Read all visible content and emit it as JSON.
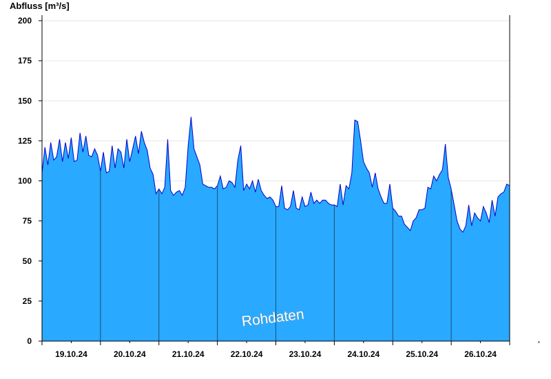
{
  "chart_data": {
    "type": "area",
    "ylabel": "Abfluss [m³/s]",
    "watermark": "Rohdaten",
    "ylim": [
      0,
      200
    ],
    "yticks": [
      0,
      25,
      50,
      75,
      100,
      125,
      150,
      175,
      200
    ],
    "x_day_labels": [
      "19.10.24",
      "20.10.24",
      "21.10.24",
      "22.10.24",
      "23.10.24",
      "24.10.24",
      "25.10.24",
      "26.10.24"
    ],
    "grid": "horizontal",
    "colors": {
      "fill": "#29a9ff",
      "line": "#0000cc",
      "grid": "#e6e6e6",
      "axis": "#000000",
      "day_line": "#1a4f7a"
    },
    "series": [
      {
        "x_day": [
          0.0,
          0.05,
          0.1,
          0.15,
          0.2,
          0.25,
          0.3,
          0.35,
          0.4,
          0.45,
          0.5,
          0.55,
          0.6,
          0.65,
          0.7,
          0.75,
          0.8,
          0.85,
          0.9,
          0.95,
          1.0,
          1.05,
          1.1,
          1.15,
          1.2,
          1.25,
          1.3,
          1.35,
          1.4,
          1.45,
          1.5,
          1.55,
          1.6,
          1.65,
          1.7,
          1.75,
          1.8,
          1.85,
          1.9,
          1.95,
          2.0,
          2.05,
          2.1,
          2.15,
          2.2,
          2.25,
          2.3,
          2.35,
          2.4,
          2.45,
          2.5,
          2.55,
          2.6,
          2.65,
          2.7,
          2.75,
          2.8,
          2.85,
          2.9,
          2.95,
          3.0,
          3.05,
          3.1,
          3.15,
          3.2,
          3.25,
          3.3,
          3.35,
          3.4,
          3.45,
          3.5,
          3.55,
          3.6,
          3.65,
          3.7,
          3.75,
          3.8,
          3.85,
          3.9,
          3.95,
          4.0,
          4.05,
          4.1,
          4.15,
          4.2,
          4.25,
          4.3,
          4.35,
          4.4,
          4.45,
          4.5,
          4.55,
          4.6,
          4.65,
          4.7,
          4.75,
          4.8,
          4.85,
          4.9,
          4.95,
          5.0,
          5.05,
          5.1,
          5.15,
          5.2,
          5.25,
          5.3,
          5.35,
          5.4,
          5.45,
          5.5,
          5.55,
          5.6,
          5.65,
          5.7,
          5.75,
          5.8,
          5.85,
          5.9,
          5.95,
          6.0,
          6.05,
          6.1,
          6.15,
          6.2,
          6.25,
          6.3,
          6.35,
          6.4,
          6.45,
          6.5,
          6.55,
          6.6,
          6.65,
          6.7,
          6.75,
          6.8,
          6.85,
          6.9,
          6.95,
          7.0,
          7.05,
          7.1,
          7.15,
          7.2,
          7.25,
          7.3,
          7.35,
          7.4,
          7.45,
          7.5,
          7.55,
          7.6,
          7.65,
          7.7,
          7.75,
          7.8,
          7.85,
          7.9,
          7.95,
          8.0
        ],
        "values": [
          105,
          121,
          110,
          124,
          113,
          115,
          126,
          112,
          124,
          114,
          127,
          112,
          113,
          130,
          118,
          128,
          116,
          115,
          120,
          116,
          106,
          118,
          105,
          106,
          122,
          108,
          120,
          118,
          108,
          126,
          112,
          120,
          128,
          117,
          131,
          124,
          119,
          108,
          104,
          92,
          95,
          92,
          96,
          126,
          94,
          91,
          93,
          94,
          91,
          96,
          122,
          140,
          120,
          115,
          110,
          98,
          97,
          96,
          96,
          95,
          97,
          103,
          95,
          96,
          100,
          99,
          96,
          113,
          122,
          94,
          98,
          95,
          100,
          93,
          101,
          94,
          91,
          89,
          90,
          88,
          84,
          84,
          97,
          83,
          82,
          84,
          94,
          83,
          82,
          90,
          84,
          85,
          93,
          86,
          88,
          86,
          88,
          88,
          86,
          85,
          85,
          84,
          98,
          85,
          97,
          95,
          105,
          138,
          137,
          125,
          112,
          108,
          105,
          96,
          105,
          95,
          90,
          86,
          86,
          98,
          83,
          81,
          78,
          78,
          73,
          71,
          69,
          75,
          77,
          82,
          82,
          83,
          96,
          95,
          103,
          100,
          104,
          107,
          123,
          102,
          95,
          85,
          75,
          70,
          68,
          72,
          85,
          72,
          80,
          77,
          75,
          84,
          80,
          74,
          88,
          78,
          90,
          92,
          93,
          98,
          97
        ]
      }
    ]
  }
}
